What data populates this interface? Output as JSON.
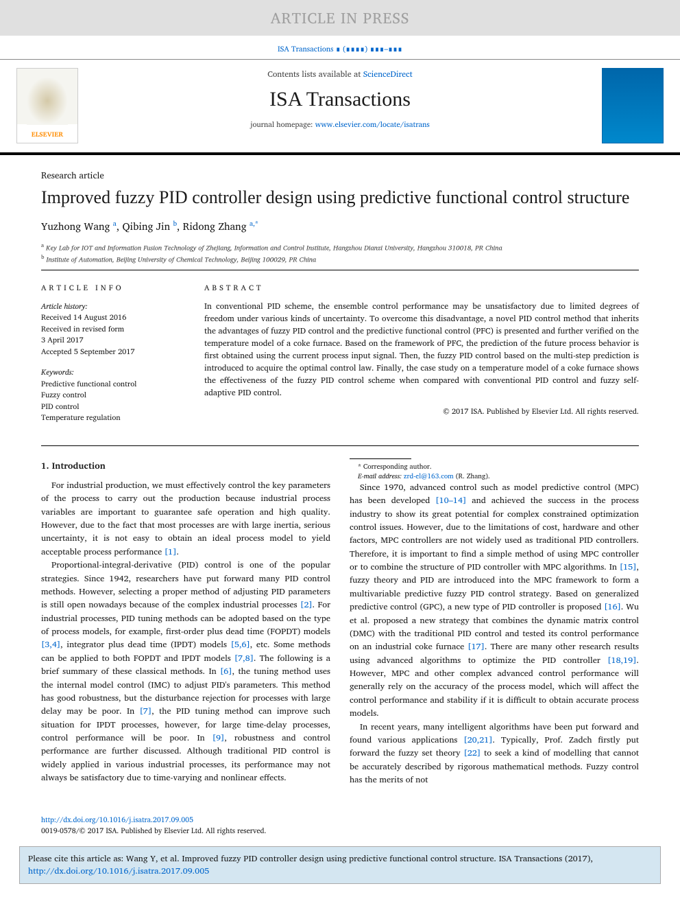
{
  "banner": "ARTICLE IN PRESS",
  "journal_ref": "ISA Transactions ∎ (∎∎∎∎) ∎∎∎–∎∎∎",
  "contents_line_prefix": "Contents lists available at ",
  "contents_link": "ScienceDirect",
  "journal_title": "ISA Transactions",
  "homepage_prefix": "journal homepage: ",
  "homepage_link": "www.elsevier.com/locate/isatrans",
  "elsevier_label": "ELSEVIER",
  "article_type": "Research article",
  "title": "Improved fuzzy PID controller design using predictive functional control structure",
  "authors": [
    {
      "name": "Yuzhong Wang",
      "sup": "a"
    },
    {
      "name": "Qibing Jin",
      "sup": "b"
    },
    {
      "name": "Ridong Zhang",
      "sup": "a,*"
    }
  ],
  "affiliations": [
    {
      "sup": "a",
      "text": "Key Lab for IOT and Information Fusion Technology of Zhejiang, Information and Control Institute, Hangzhou Dianzi University, Hangzhou 310018, PR China"
    },
    {
      "sup": "b",
      "text": "Institute of Automation, Beijing University of Chemical Technology, Beijing 100029, PR China"
    }
  ],
  "article_info_heading": "ARTICLE INFO",
  "abstract_heading": "ABSTRACT",
  "history_label": "Article history:",
  "history_lines": [
    "Received 14 August 2016",
    "Received in revised form",
    "3 April 2017",
    "Accepted 5 September 2017"
  ],
  "keywords_label": "Keywords:",
  "keywords": [
    "Predictive functional control",
    "Fuzzy control",
    "PID control",
    "Temperature regulation"
  ],
  "abstract": "In conventional PID scheme, the ensemble control performance may be unsatisfactory due to limited degrees of freedom under various kinds of uncertainty. To overcome this disadvantage, a novel PID control method that inherits the advantages of fuzzy PID control and the predictive functional control (PFC) is presented and further verified on the temperature model of a coke furnace. Based on the framework of PFC, the prediction of the future process behavior is first obtained using the current process input signal. Then, the fuzzy PID control based on the multi-step prediction is introduced to acquire the optimal control law. Finally, the case study on a temperature model of a coke furnace shows the effectiveness of the fuzzy PID control scheme when compared with conventional PID control and fuzzy self-adaptive PID control.",
  "copyright": "© 2017 ISA. Published by Elsevier Ltd. All rights reserved.",
  "intro_heading": "1. Introduction",
  "para1": "For industrial production, we must effectively control the key parameters of the process to carry out the production because industrial process variables are important to guarantee safe operation and high quality. However, due to the fact that most processes are with large inertia, serious uncertainty, it is not easy to obtain an ideal process model to yield acceptable process performance ",
  "ref1": "[1]",
  "para1_end": ".",
  "para2a": "Proportional-integral-derivative (PID) control is one of the popular strategies. Since 1942, researchers have put forward many PID control methods. However, selecting a proper method of adjusting PID parameters is still open nowadays because of the complex industrial processes ",
  "ref2": "[2]",
  "para2b": ". For industrial processes, PID tuning methods can be adopted based on the type of process models, for example, first-order plus dead time (FOPDT) models ",
  "ref34": "[3,4]",
  "para2c": ", integrator plus dead time (IPDT) models ",
  "ref56": "[5,6]",
  "para2d": ", etc. Some methods can be applied to both FOPDT and IPDT models ",
  "ref78": "[7,8]",
  "para2e": ". The following is a brief summary of these classical methods. In ",
  "ref6": "[6]",
  "para2f": ", the tuning method uses the internal model control (IMC) to adjust PID's parameters. This method has good robustness, but the disturbance rejection for processes with large delay may be poor. In ",
  "ref7": "[7]",
  "para2g": ", the PID tuning method can improve such situation for IPDT processes, however, for large time-delay processes, control performance will be poor. In ",
  "ref9": "[9]",
  "para2h": ", robustness and control performance are further discussed. Although traditional PID control is widely applied in various industrial processes, its performance may not always be satisfactory due to time-varying and nonlinear effects.",
  "para3a": "Since 1970, advanced control such as model predictive control (MPC) has been developed ",
  "ref1014": "[10–14]",
  "para3b": " and achieved the success in the process industry to show its great potential for complex constrained optimization control issues. However, due to the limitations of cost, hardware and other factors, MPC controllers are not widely used as traditional PID controllers. Therefore, it is important to find a simple method of using MPC controller or to combine the structure of PID controller with MPC algorithms. In ",
  "ref15": "[15]",
  "para3c": ", fuzzy theory and PID are introduced into the MPC framework to form a multivariable predictive fuzzy PID control strategy. Based on generalized predictive control (GPC), a new type of PID controller is proposed ",
  "ref16": "[16]",
  "para3d": ". Wu et al. proposed a new strategy that combines the dynamic matrix control (DMC) with the traditional PID control and tested its control performance on an industrial coke furnace ",
  "ref17": "[17]",
  "para3e": ". There are many other research results using advanced algorithms to optimize the PID controller ",
  "ref1819": "[18,19]",
  "para3f": ". However, MPC and other complex advanced control performance will generally rely on the accuracy of the process model, which will affect the control performance and stability if it is difficult to obtain accurate process models.",
  "para4a": "In recent years, many intelligent algorithms have been put forward and found various applications ",
  "ref2021": "[20,21]",
  "para4b": ". Typically, Prof. Zadch firstly put forward the fuzzy set theory ",
  "ref22": "[22]",
  "para4c": " to seek a kind of modelling that cannot be accurately described by rigorous mathematical methods. Fuzzy control has the merits of not",
  "corr_label": "* Corresponding author.",
  "email_label": "E-mail address: ",
  "email": "zrd-el@163.com",
  "email_suffix": " (R. Zhang).",
  "doi": "http://dx.doi.org/10.1016/j.isatra.2017.09.005",
  "issn_line": "0019-0578/© 2017 ISA. Published by Elsevier Ltd. All rights reserved.",
  "cite_prefix": "Please cite this article as: Wang Y, et al. Improved fuzzy PID controller design using predictive functional control structure. ISA Transactions (2017), ",
  "cite_doi": "http://dx.doi.org/10.1016/j.isatra.2017.09.005",
  "colors": {
    "link": "#0066cc",
    "banner_bg": "#e0e0e0",
    "banner_fg": "#a0a0a0",
    "cite_bg": "#d4e6f1",
    "elsevier_orange": "#ff8c00"
  }
}
